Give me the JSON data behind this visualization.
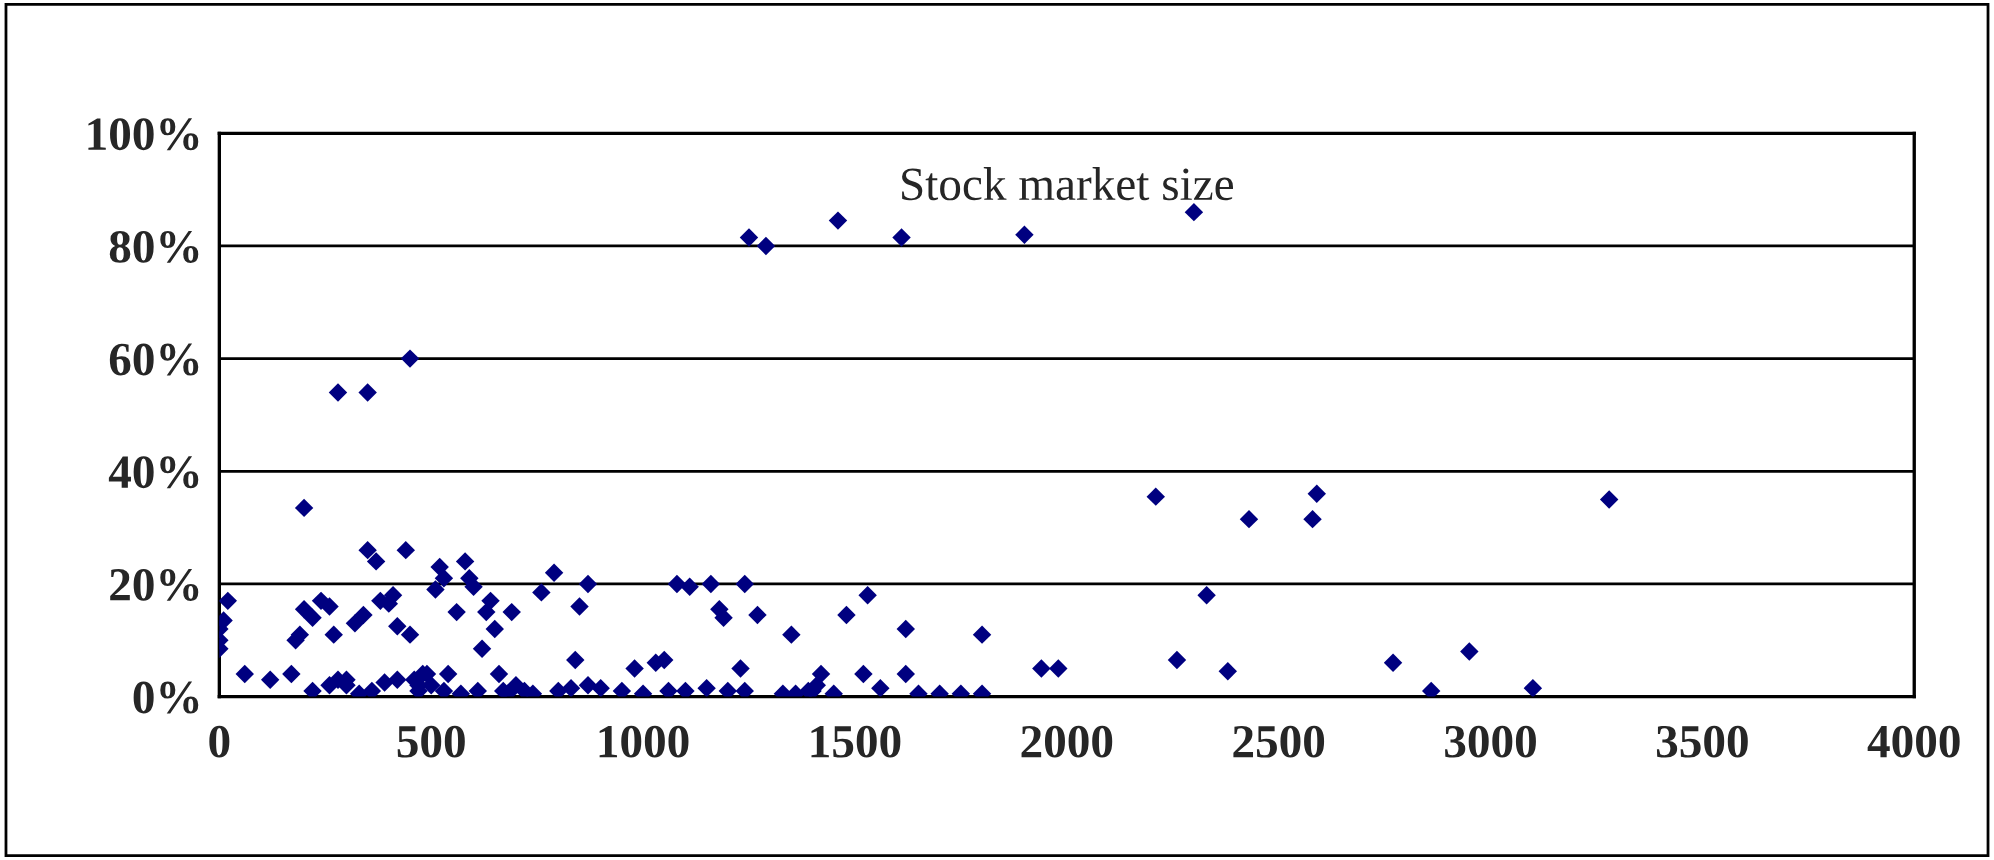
{
  "chart_data": {
    "type": "scatter",
    "title": "Stock market size",
    "marker": "diamond",
    "grid": "y",
    "legend": false,
    "xlim": [
      0,
      4000
    ],
    "xticks": [
      0,
      500,
      1000,
      1500,
      2000,
      2500,
      3000,
      3500,
      4000
    ],
    "ylim": [
      0,
      100
    ],
    "yticks": [
      {
        "value": 0,
        "label": "0%"
      },
      {
        "value": 20,
        "label": "20%"
      },
      {
        "value": 40,
        "label": "40%"
      },
      {
        "value": 60,
        "label": "60%"
      },
      {
        "value": 80,
        "label": "80%"
      },
      {
        "value": 100,
        "label": "100%"
      }
    ],
    "series": [
      {
        "color": "#000080",
        "x": [
          1250,
          1290,
          1460,
          1610,
          1900,
          2300,
          280,
          350,
          450,
          200,
          2210,
          2590,
          2430,
          2580,
          3280,
          2330,
          2260,
          2380,
          2770,
          2950,
          2860,
          3100,
          1940,
          1980,
          1800,
          1620,
          1530,
          1480,
          1350,
          0,
          0,
          0,
          10,
          20,
          60,
          120,
          170,
          180,
          190,
          200,
          220,
          240,
          260,
          270,
          280,
          300,
          320,
          340,
          350,
          370,
          380,
          400,
          410,
          420,
          440,
          450,
          460,
          470,
          480,
          500,
          510,
          520,
          530,
          540,
          560,
          580,
          590,
          600,
          620,
          630,
          640,
          650,
          660,
          670,
          690,
          700,
          720,
          760,
          790,
          850,
          870,
          840,
          900,
          980,
          1030,
          1050,
          1080,
          1110,
          1160,
          1180,
          1190,
          1240,
          1270,
          1230,
          220,
          260,
          300,
          330,
          360,
          390,
          420,
          470,
          490,
          530,
          570,
          610,
          680,
          740,
          800,
          830,
          870,
          950,
          1000,
          1060,
          1100,
          1150,
          1200,
          1240,
          1330,
          1360,
          1390,
          1420,
          1450,
          1520,
          1560,
          1620,
          1650,
          1700,
          1750,
          1800,
          1400,
          1410
        ],
        "values": [
          81.5,
          80,
          84.5,
          81.5,
          82,
          86,
          54,
          54,
          60,
          33.5,
          35.5,
          36,
          31.5,
          31.5,
          35,
          18,
          6.5,
          4.5,
          6,
          8,
          1,
          1.5,
          5,
          5,
          11,
          12,
          18,
          14.5,
          11,
          8.5,
          10,
          12,
          13.5,
          17,
          4,
          3,
          4,
          10,
          11,
          15.5,
          14,
          17,
          16,
          11,
          3,
          2,
          13,
          14.5,
          26,
          24,
          17,
          16.5,
          18,
          12.5,
          26,
          11,
          3,
          1,
          4,
          2,
          19,
          23,
          21,
          4,
          15,
          24,
          21,
          19.5,
          8.5,
          15,
          17,
          12,
          4,
          1,
          15,
          2,
          1,
          18.5,
          22,
          16,
          20,
          6.5,
          1.5,
          5,
          6,
          6.5,
          20,
          19.5,
          20,
          15.5,
          14,
          20,
          14.5,
          5,
          1,
          2,
          3,
          0.5,
          1,
          2.5,
          3,
          2,
          4,
          1,
          0.5,
          1,
          0.5,
          0.5,
          1,
          1.5,
          2,
          1,
          0.5,
          1,
          1,
          1.5,
          1,
          1,
          0.5,
          0.5,
          1,
          4,
          0.5,
          4,
          1.5,
          4,
          0.5,
          0.5,
          0.5,
          0.5,
          1,
          2
        ]
      }
    ]
  }
}
